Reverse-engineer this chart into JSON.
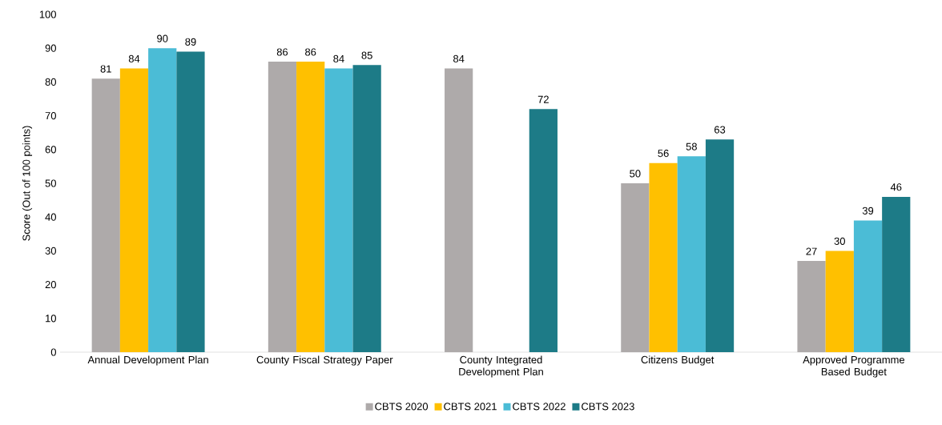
{
  "chart_data": {
    "type": "bar",
    "ylabel": "Score (Out of 100 points)",
    "categories": [
      "Annual Development Plan",
      "County Fiscal Strategy Paper",
      "County Integrated Development Plan",
      "Citizens Budget",
      "Approved Programme Based Budget"
    ],
    "series": [
      {
        "name": "CBTS 2020",
        "color": "#aeaaaa",
        "values": [
          81,
          86,
          84,
          50,
          27
        ]
      },
      {
        "name": "CBTS 2021",
        "color": "#ffc000",
        "values": [
          84,
          86,
          null,
          56,
          30
        ]
      },
      {
        "name": "CBTS 2022",
        "color": "#4bbcd6",
        "values": [
          90,
          84,
          null,
          58,
          39
        ]
      },
      {
        "name": "CBTS 2023",
        "color": "#1d7b87",
        "values": [
          89,
          85,
          72,
          63,
          46
        ]
      }
    ],
    "ylim": [
      0,
      100
    ],
    "yticks": [
      0,
      10,
      20,
      30,
      40,
      50,
      60,
      70,
      80,
      90,
      100
    ],
    "data_labels": true,
    "legend": "bottom",
    "grid": false
  }
}
